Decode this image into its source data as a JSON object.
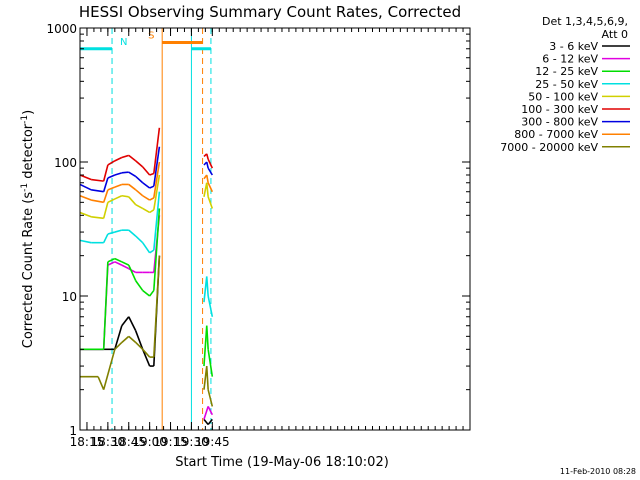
{
  "chart_data": {
    "type": "line",
    "title": "HESSI Observing Summary Count Rates, Corrected",
    "xlabel": "Start Time (19-May-06 18:10:02)",
    "ylabel_main": "Corrected Count Rate (s",
    "ylabel_sup1": "-1",
    "ylabel_mid": " detector",
    "ylabel_sup2": "-1",
    "ylabel_end": ")",
    "y_scale": "log",
    "ylim": [
      1,
      1000
    ],
    "xlim_min": [
      1090,
      1370
    ],
    "x_ticks": [
      {
        "min": 1095,
        "label": "18:15"
      },
      {
        "min": 1110,
        "label": "18:30"
      },
      {
        "min": 1125,
        "label": "18:45"
      },
      {
        "min": 1140,
        "label": "19:00"
      },
      {
        "min": 1155,
        "label": "19:15"
      },
      {
        "min": 1170,
        "label": "19:30"
      },
      {
        "min": 1185,
        "label": "19:45"
      }
    ],
    "y_ticks": [
      {
        "value": 1,
        "label": "1"
      },
      {
        "value": 10,
        "label": "10"
      },
      {
        "value": 100,
        "label": "100"
      },
      {
        "value": 1000,
        "label": "1000"
      }
    ],
    "legend_header": [
      "Det 1,3,4,5,6,9,",
      "Att 0"
    ],
    "legend_placement": "right",
    "series": [
      {
        "name": "3 - 6 keV",
        "color": "#000000",
        "points": [
          [
            1090,
            4
          ],
          [
            1107,
            4
          ],
          [
            1115,
            4
          ],
          [
            1120,
            6
          ],
          [
            1125,
            7
          ],
          [
            1130,
            5.5
          ],
          [
            1135,
            4
          ],
          [
            1140,
            3
          ],
          [
            1143,
            3
          ],
          [
            1147,
            20
          ],
          [
            1179,
            1.2
          ],
          [
            1182,
            1.1
          ],
          [
            1185,
            1.2
          ]
        ]
      },
      {
        "name": "6 - 12 keV",
        "color": "#e000e0",
        "points": [
          [
            1090,
            4
          ],
          [
            1107,
            4
          ],
          [
            1110,
            17
          ],
          [
            1115,
            18
          ],
          [
            1120,
            17
          ],
          [
            1125,
            16
          ],
          [
            1130,
            15
          ],
          [
            1135,
            15
          ],
          [
            1140,
            15
          ],
          [
            1143,
            15
          ],
          [
            1147,
            40
          ],
          [
            1179,
            1.2
          ],
          [
            1182,
            1.5
          ],
          [
            1185,
            1.3
          ]
        ]
      },
      {
        "name": "12 - 25 keV",
        "color": "#00dd00",
        "points": [
          [
            1090,
            4
          ],
          [
            1107,
            4
          ],
          [
            1110,
            18
          ],
          [
            1115,
            19
          ],
          [
            1120,
            18
          ],
          [
            1125,
            17
          ],
          [
            1130,
            13
          ],
          [
            1135,
            11
          ],
          [
            1140,
            10
          ],
          [
            1143,
            11
          ],
          [
            1147,
            45
          ],
          [
            1179,
            3
          ],
          [
            1181,
            6
          ],
          [
            1182,
            4
          ],
          [
            1185,
            2.5
          ]
        ]
      },
      {
        "name": "25 - 50 keV",
        "color": "#00e0e0",
        "points": [
          [
            1090,
            26
          ],
          [
            1098,
            25
          ],
          [
            1107,
            25
          ],
          [
            1110,
            29
          ],
          [
            1115,
            30
          ],
          [
            1120,
            31
          ],
          [
            1125,
            31
          ],
          [
            1130,
            28
          ],
          [
            1135,
            25
          ],
          [
            1140,
            21
          ],
          [
            1143,
            22
          ],
          [
            1147,
            60
          ],
          [
            1179,
            9
          ],
          [
            1181,
            14
          ],
          [
            1182,
            10
          ],
          [
            1185,
            7
          ]
        ]
      },
      {
        "name": "50 - 100 keV",
        "color": "#d0d000",
        "points": [
          [
            1090,
            42
          ],
          [
            1098,
            39
          ],
          [
            1107,
            38
          ],
          [
            1110,
            50
          ],
          [
            1115,
            53
          ],
          [
            1120,
            56
          ],
          [
            1125,
            55
          ],
          [
            1130,
            48
          ],
          [
            1135,
            45
          ],
          [
            1140,
            42
          ],
          [
            1143,
            44
          ],
          [
            1147,
            80
          ],
          [
            1179,
            55
          ],
          [
            1181,
            70
          ],
          [
            1182,
            55
          ],
          [
            1185,
            45
          ]
        ]
      },
      {
        "name": "100 - 300 keV",
        "color": "#e00000",
        "points": [
          [
            1090,
            80
          ],
          [
            1098,
            74
          ],
          [
            1107,
            72
          ],
          [
            1110,
            95
          ],
          [
            1115,
            102
          ],
          [
            1120,
            108
          ],
          [
            1125,
            112
          ],
          [
            1130,
            102
          ],
          [
            1135,
            92
          ],
          [
            1140,
            80
          ],
          [
            1143,
            82
          ],
          [
            1147,
            180
          ],
          [
            1179,
            110
          ],
          [
            1181,
            115
          ],
          [
            1182,
            105
          ],
          [
            1185,
            90
          ]
        ]
      },
      {
        "name": "300 - 800 keV",
        "color": "#0000e0",
        "points": [
          [
            1090,
            68
          ],
          [
            1098,
            62
          ],
          [
            1107,
            60
          ],
          [
            1110,
            76
          ],
          [
            1115,
            80
          ],
          [
            1120,
            83
          ],
          [
            1125,
            84
          ],
          [
            1130,
            78
          ],
          [
            1135,
            70
          ],
          [
            1140,
            64
          ],
          [
            1143,
            66
          ],
          [
            1147,
            130
          ],
          [
            1179,
            95
          ],
          [
            1181,
            100
          ],
          [
            1182,
            90
          ],
          [
            1185,
            80
          ]
        ]
      },
      {
        "name": "800 - 7000 keV",
        "color": "#ff8000",
        "points": [
          [
            1090,
            56
          ],
          [
            1098,
            52
          ],
          [
            1107,
            50
          ],
          [
            1110,
            62
          ],
          [
            1115,
            65
          ],
          [
            1120,
            68
          ],
          [
            1125,
            68
          ],
          [
            1130,
            62
          ],
          [
            1135,
            56
          ],
          [
            1140,
            52
          ],
          [
            1143,
            54
          ],
          [
            1147,
            100
          ],
          [
            1179,
            75
          ],
          [
            1181,
            80
          ],
          [
            1182,
            70
          ],
          [
            1185,
            60
          ]
        ]
      },
      {
        "name": "7000 - 20000 keV",
        "color": "#808000",
        "points": [
          [
            1090,
            2.5
          ],
          [
            1103,
            2.5
          ],
          [
            1107,
            2
          ],
          [
            1115,
            4
          ],
          [
            1120,
            4.5
          ],
          [
            1125,
            5
          ],
          [
            1130,
            4.5
          ],
          [
            1135,
            4
          ],
          [
            1140,
            3.5
          ],
          [
            1143,
            3.5
          ],
          [
            1147,
            20
          ],
          [
            1179,
            2
          ],
          [
            1181,
            3
          ],
          [
            1182,
            2
          ],
          [
            1185,
            1.5
          ]
        ]
      }
    ],
    "flag_markers": [
      {
        "label": "N",
        "color": "#00e0e0",
        "start_min": 1090,
        "end_min": 1113,
        "flag_value": 700
      },
      {
        "label": "S",
        "color": "#ff8000",
        "start_min": 1149,
        "end_min": 1178,
        "flag_value": 780
      },
      {
        "label": "",
        "color": "#00e0e0",
        "start_min": 1170,
        "end_min": 1184,
        "flag_value": 700
      }
    ],
    "vertical_markers": [
      {
        "min": 1113,
        "color": "#00e0e0",
        "style": "dashed"
      },
      {
        "min": 1149,
        "color": "#ff8000",
        "style": "solid"
      },
      {
        "min": 1170,
        "color": "#00e0e0",
        "style": "solid"
      },
      {
        "min": 1178,
        "color": "#ff8000",
        "style": "dashed"
      },
      {
        "min": 1184,
        "color": "#00e0e0",
        "style": "dashed"
      }
    ],
    "grid": false
  },
  "footer": {
    "timestamp": "11-Feb-2010 08:28"
  }
}
